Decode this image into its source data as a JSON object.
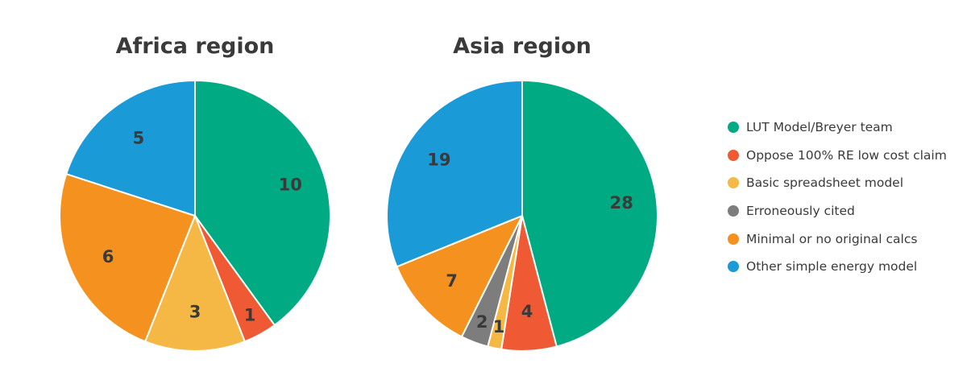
{
  "legend": {
    "placement": "right",
    "items": [
      {
        "label": "LUT Model/Breyer team",
        "color": "#00ab84"
      },
      {
        "label": "Oppose 100% RE low cost claim",
        "color": "#ef5a35"
      },
      {
        "label": "Basic spreadsheet model",
        "color": "#f6b844"
      },
      {
        "label": "Erroneously cited",
        "color": "#7d7d7d"
      },
      {
        "label": "Minimal or no original calcs",
        "color": "#f5921f"
      },
      {
        "label": "Other simple energy model",
        "color": "#1a9ad6"
      }
    ]
  },
  "chart_data": [
    {
      "type": "pie",
      "title": "Africa region",
      "categories": [
        "LUT Model/Breyer team",
        "Oppose 100% RE low cost claim",
        "Basic spreadsheet model",
        "Erroneously cited",
        "Minimal or no original calcs",
        "Other simple energy model"
      ],
      "values": [
        10,
        1,
        3,
        0,
        6,
        5
      ],
      "colors": [
        "#00ab84",
        "#ef5a35",
        "#f6b844",
        "#7d7d7d",
        "#f5921f",
        "#1a9ad6"
      ],
      "start": "top",
      "direction": "clockwise"
    },
    {
      "type": "pie",
      "title": "Asia region",
      "categories": [
        "LUT Model/Breyer team",
        "Oppose 100% RE low cost claim",
        "Basic spreadsheet model",
        "Erroneously cited",
        "Minimal or no original calcs",
        "Other simple energy model"
      ],
      "values": [
        28,
        4,
        1,
        2,
        7,
        19
      ],
      "colors": [
        "#00ab84",
        "#ef5a35",
        "#f6b844",
        "#7d7d7d",
        "#f5921f",
        "#1a9ad6"
      ],
      "start": "top",
      "direction": "clockwise"
    }
  ]
}
